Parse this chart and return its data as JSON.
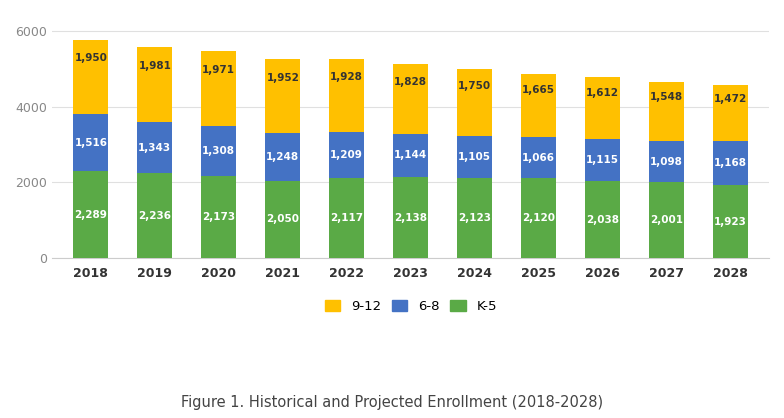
{
  "years": [
    "2018",
    "2019",
    "2020",
    "2021",
    "2022",
    "2023",
    "2024",
    "2025",
    "2026",
    "2027",
    "2028"
  ],
  "k5": [
    2289,
    2236,
    2173,
    2050,
    2117,
    2138,
    2123,
    2120,
    2038,
    2001,
    1923
  ],
  "g68": [
    1516,
    1343,
    1308,
    1248,
    1209,
    1144,
    1105,
    1066,
    1115,
    1098,
    1168
  ],
  "g912": [
    1950,
    1981,
    1971,
    1952,
    1928,
    1828,
    1750,
    1665,
    1612,
    1548,
    1472
  ],
  "color_k5": "#5aaa46",
  "color_68": "#4472c4",
  "color_912": "#ffc000",
  "background": "#ffffff",
  "ylabel_ticks": [
    0,
    2000,
    4000,
    6000
  ],
  "ylim": [
    0,
    6300
  ],
  "bar_width": 0.55,
  "label_fontsize": 7.5,
  "legend_fontsize": 9.5,
  "tick_fontsize": 9,
  "caption": "Figure 1. Historical and Projected Enrollment (2018-2028)",
  "caption_fontsize": 10.5
}
